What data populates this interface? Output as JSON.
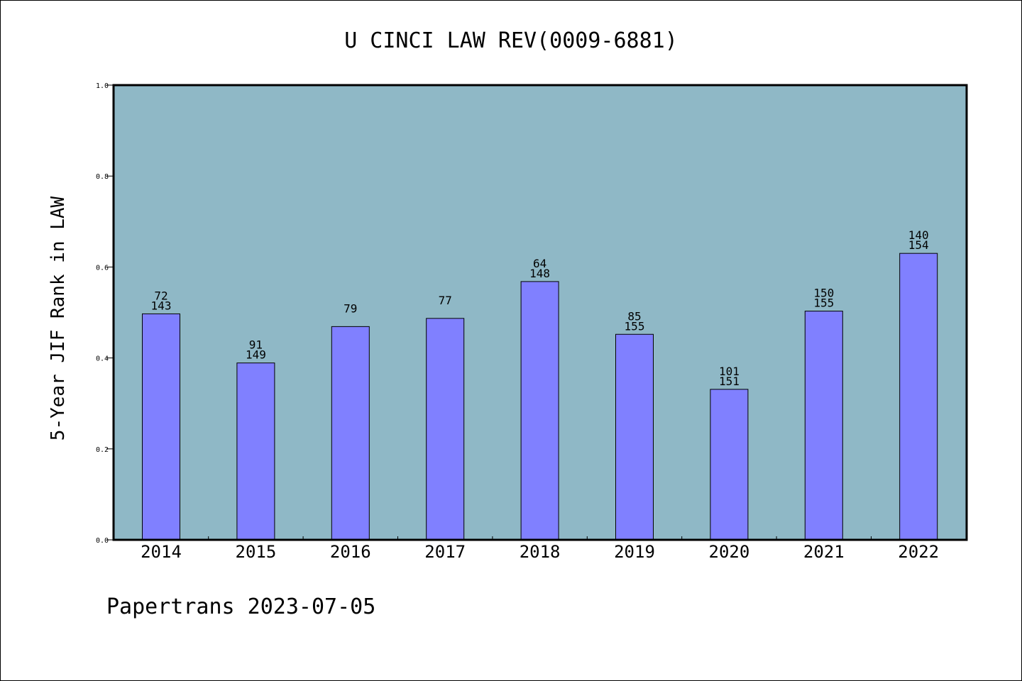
{
  "chart_data": {
    "type": "bar",
    "title": "U CINCI LAW REV(0009-6881)",
    "ylabel": "5-Year JIF Rank in LAW",
    "xlabel": "",
    "ylim": [
      0,
      1.0
    ],
    "yticks": [
      "0.0",
      "0.2",
      "0.4",
      "0.6",
      "0.8",
      "1.0"
    ],
    "categories": [
      "2014",
      "2015",
      "2016",
      "2017",
      "2018",
      "2019",
      "2020",
      "2021",
      "2022"
    ],
    "values": [
      0.497,
      0.389,
      0.469,
      0.487,
      0.568,
      0.452,
      0.331,
      0.503,
      0.63
    ],
    "label_top": [
      "72",
      "91",
      "",
      "",
      "64",
      "85",
      "101",
      "150",
      "140"
    ],
    "label_bottom": [
      "143",
      "149",
      "79",
      "77",
      "148",
      "155",
      "151",
      "155",
      "154"
    ],
    "grid": false,
    "plot_background": "#8fb8c6",
    "bar_color": "#8080ff"
  },
  "footer": {
    "text": "Papertrans 2023-07-05"
  }
}
